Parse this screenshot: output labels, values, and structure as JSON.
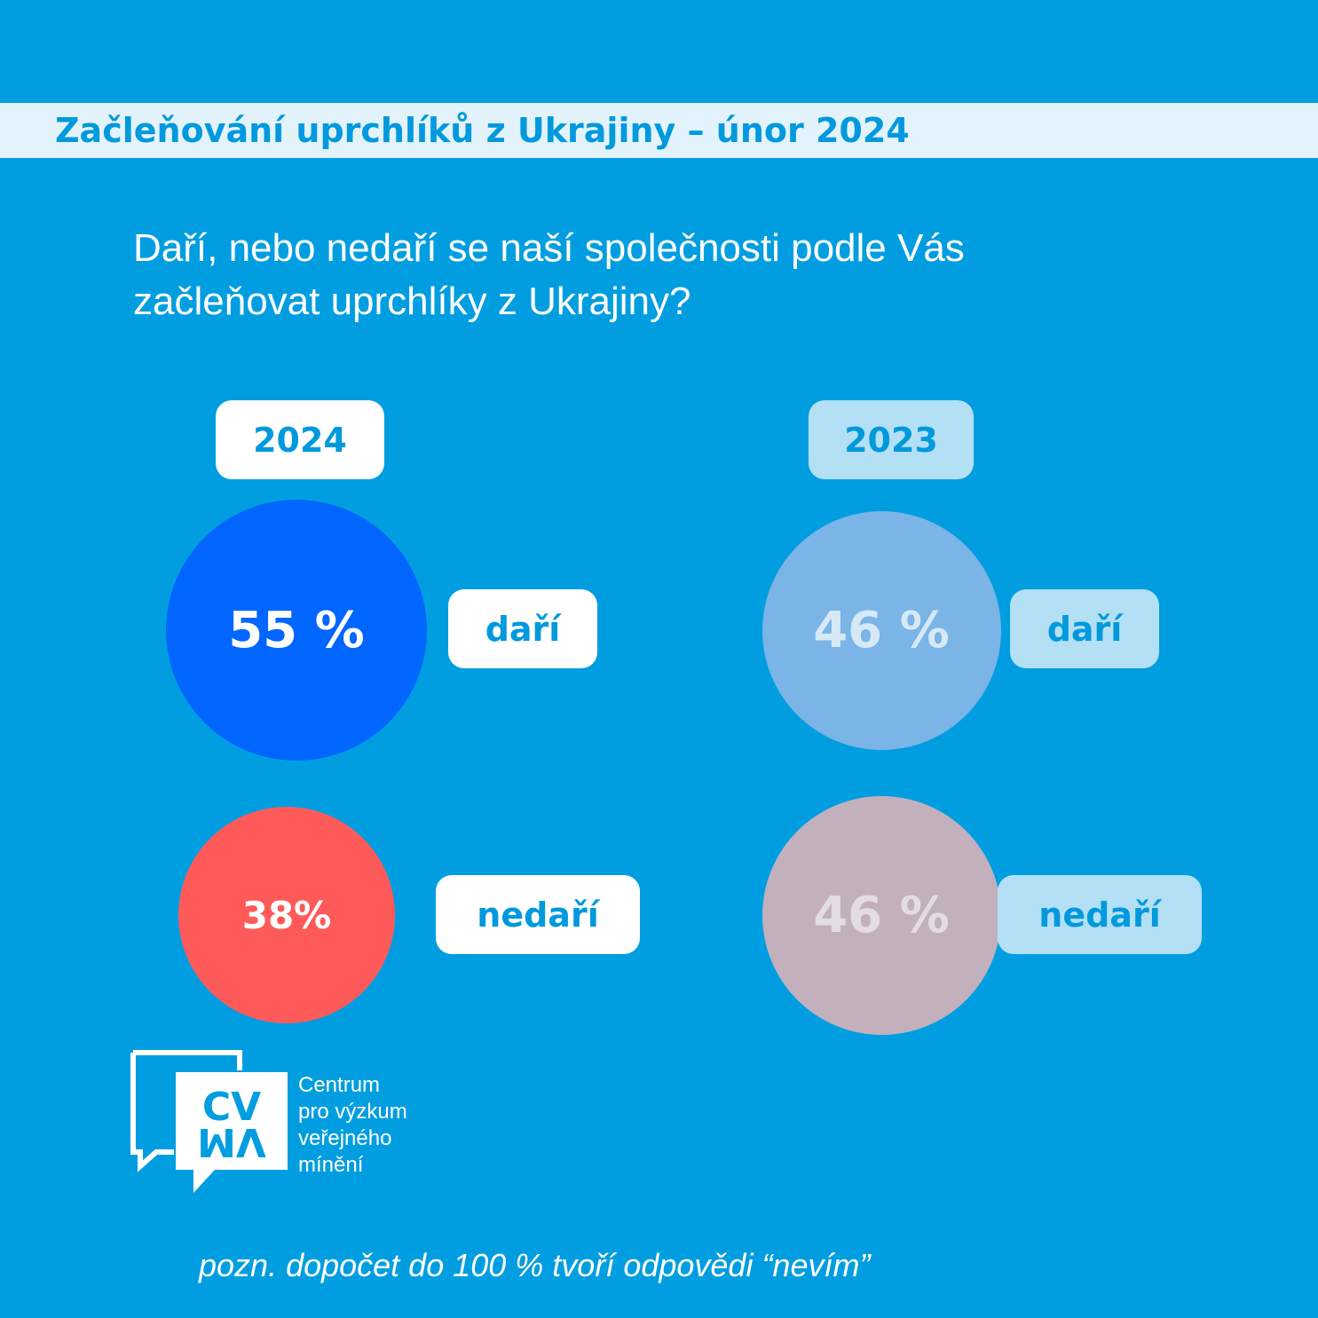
{
  "header": {
    "title": "Začleňování uprchlíků z Ukrajiny – únor 2024"
  },
  "question": {
    "line1": "Daří, nebo nedaří se naší společnosti podle Vás",
    "line2": "začleňovat uprchlíky z Ukrajiny?"
  },
  "colors": {
    "background": "#009ee0",
    "accent_text": "#0099dd",
    "dari_2024": "#0066ff",
    "nedari_2024": "#ff5a5a",
    "dari_2023": "#7bb4e6",
    "nedari_2023": "#c3b0bd"
  },
  "chart_data": {
    "type": "bubble",
    "groups": [
      {
        "year": "2024",
        "items": [
          {
            "category": "daří",
            "value": 55,
            "label": "55 %"
          },
          {
            "category": "nedaří",
            "value": 38,
            "label": "38%"
          }
        ]
      },
      {
        "year": "2023",
        "items": [
          {
            "category": "daří",
            "value": 46,
            "label": "46 %"
          },
          {
            "category": "nedaří",
            "value": 46,
            "label": "46 %"
          }
        ]
      }
    ]
  },
  "logo": {
    "icon": "cvvm-speech-bubble-logo",
    "mark_top": "CV",
    "mark_bottom": "VM",
    "line1": "Centrum",
    "line2": "pro výzkum",
    "line3": "veřejného",
    "line4": "mínění"
  },
  "footnote": "pozn. dopočet do 100 % tvoří odpovědi “nevím”"
}
